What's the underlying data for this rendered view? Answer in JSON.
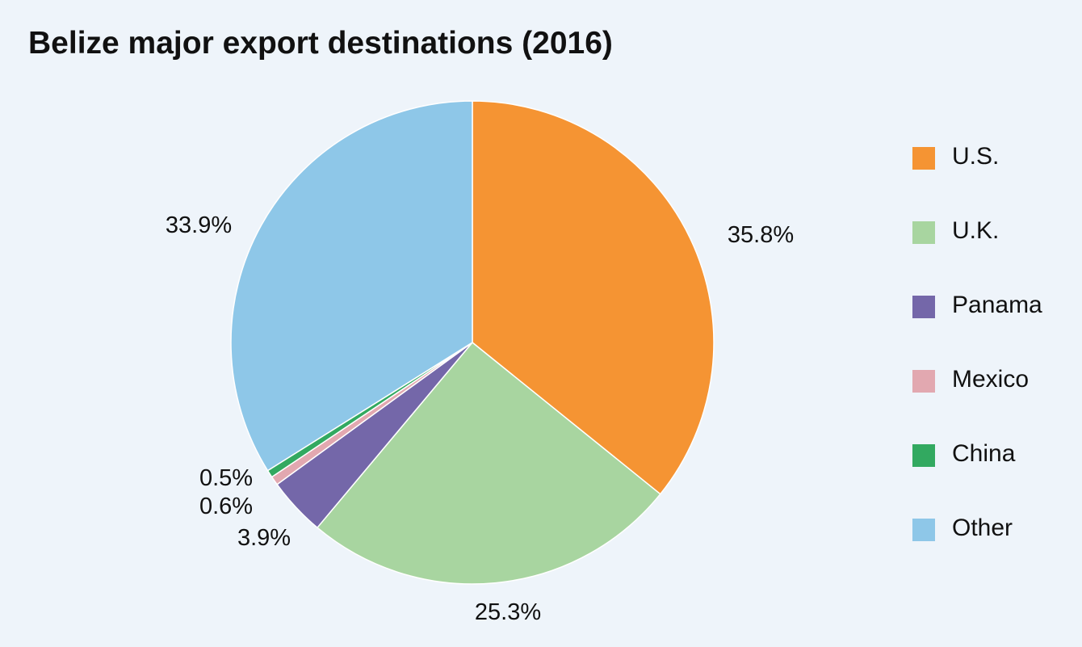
{
  "chart_data": {
    "type": "pie",
    "title": "Belize major export destinations (2016)",
    "categories": [
      "U.S.",
      "U.K.",
      "Panama",
      "Mexico",
      "China",
      "Other"
    ],
    "values": [
      35.8,
      25.3,
      3.9,
      0.6,
      0.5,
      33.9
    ],
    "value_labels": [
      "35.8%",
      "25.3%",
      "3.9%",
      "0.6%",
      "0.5%",
      "33.9%"
    ],
    "colors": [
      "#f59433",
      "#a8d5a0",
      "#7467a9",
      "#e2a8b0",
      "#32a960",
      "#8ec7e8"
    ],
    "unit": "%",
    "legend": "right",
    "start_angle": "12 o'clock",
    "direction": "clockwise"
  }
}
